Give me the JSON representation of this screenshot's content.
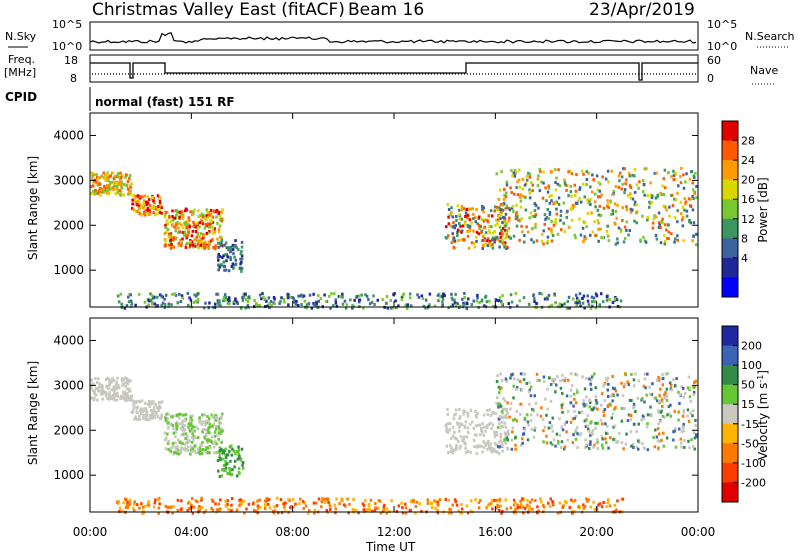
{
  "header": {
    "station": "Christmas Valley East (fitACF)",
    "beam": "Beam 16",
    "date": "23/Apr/2019"
  },
  "aux": {
    "nsky_label": "N.Sky",
    "nsearch_label": "N.Search",
    "nsky_ticks": [
      "10^5",
      "10^0"
    ],
    "freq_label": "Freq.",
    "freq_unit": "[MHz]",
    "freq_ticks": [
      "18",
      "8"
    ],
    "nave_label": "Nave",
    "nave_ticks": [
      "60",
      "0"
    ],
    "cpid_label": "CPID",
    "cpid_text": "normal (fast) 151 RF"
  },
  "chart_data": [
    {
      "type": "heatmap",
      "title": "Power",
      "ylabel": "Slant Range [km]",
      "xlabel": "Time UT",
      "colorbar_label": "Power [dB]",
      "colorbar_ticks": [
        "28",
        "24",
        "20",
        "16",
        "12",
        "8",
        "4"
      ],
      "colorbar_colors": [
        "#e00000",
        "#ff5a00",
        "#ff9a00",
        "#d8d800",
        "#78c832",
        "#3c9660",
        "#3c64a0",
        "#1e2896",
        "#0000ff"
      ],
      "yticks": [
        "4000",
        "3000",
        "2000",
        "1000"
      ],
      "ylim": [
        180,
        4500
      ]
    },
    {
      "type": "heatmap",
      "title": "Velocity",
      "ylabel": "Slant Range [km]",
      "xlabel": "Time UT",
      "colorbar_label": "Velocity [m s^-1]",
      "colorbar_ticks": [
        "200",
        "100",
        "50",
        "15",
        "-15",
        "-50",
        "-100",
        "-200"
      ],
      "colorbar_colors": [
        "#1e28a0",
        "#3c64b4",
        "#328c46",
        "#64c832",
        "#c8c8c0",
        "#ffb400",
        "#ff7800",
        "#ff3c00",
        "#e00000"
      ],
      "yticks": [
        "4000",
        "3000",
        "2000",
        "1000"
      ],
      "ylim": [
        180,
        4500
      ]
    }
  ],
  "time_axis": {
    "label": "Time UT",
    "ticks": [
      "00:00",
      "04:00",
      "08:00",
      "12:00",
      "16:00",
      "20:00",
      "00:00"
    ],
    "range_hours": [
      0,
      24
    ]
  }
}
